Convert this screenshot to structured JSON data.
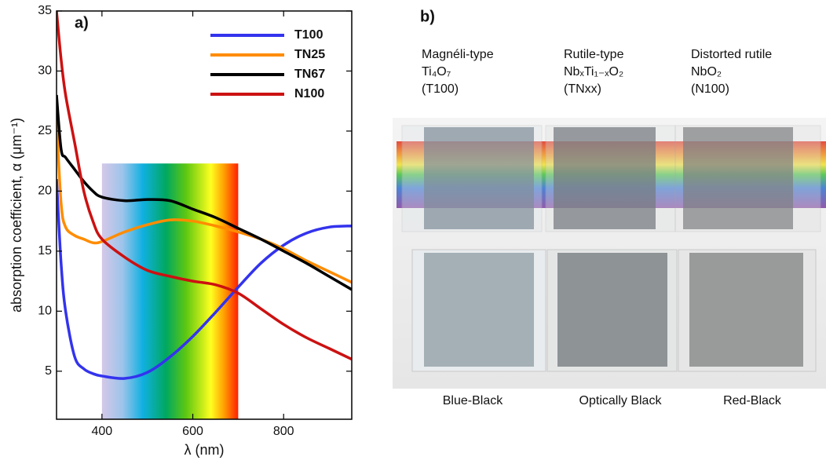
{
  "chart_data": {
    "type": "line",
    "panel_label": "a)",
    "xlabel": "λ (nm)",
    "ylabel": "absorption coefficient, α (μm⁻¹)",
    "xlim": [
      300,
      950
    ],
    "ylim": [
      1,
      35
    ],
    "xticks": [
      400,
      600,
      800
    ],
    "yticks": [
      5,
      10,
      15,
      20,
      25,
      30,
      35
    ],
    "legend": "upper right",
    "visible_band": {
      "x": [
        400,
        700
      ],
      "top": 22.3
    },
    "x": [
      300,
      310,
      320,
      340,
      360,
      380,
      400,
      450,
      500,
      550,
      600,
      650,
      700,
      750,
      800,
      850,
      900,
      950
    ],
    "series": [
      {
        "name": "T100",
        "color": "#3333ee",
        "values": [
          21,
          14,
          10,
          6.2,
          5.2,
          4.8,
          4.6,
          4.4,
          4.9,
          6.2,
          7.9,
          9.9,
          12,
          14,
          15.5,
          16.5,
          17,
          17.1
        ]
      },
      {
        "name": "TN25",
        "color": "#ff8c00",
        "values": [
          26,
          19,
          17,
          16.3,
          16,
          15.7,
          15.8,
          16.6,
          17.2,
          17.6,
          17.5,
          17.1,
          16.6,
          16,
          15.2,
          14.2,
          13.3,
          12.4
        ]
      },
      {
        "name": "TN67",
        "color": "#000000",
        "values": [
          28,
          23.5,
          22.8,
          21.8,
          20.8,
          20,
          19.5,
          19.2,
          19.3,
          19.2,
          18.5,
          17.8,
          16.9,
          16,
          15,
          14,
          12.9,
          11.8
        ]
      },
      {
        "name": "N100",
        "color": "#cc1111",
        "values": [
          35,
          31,
          28,
          24,
          20,
          17.5,
          16,
          14.5,
          13.4,
          12.9,
          12.5,
          12.2,
          11.5,
          10.2,
          8.9,
          7.8,
          6.9,
          6
        ]
      }
    ]
  },
  "photo_panel": {
    "panel_label": "b)",
    "columns": [
      {
        "type": "Magnéli-type",
        "formula": "Ti₄O₇",
        "code": "(T100)",
        "caption": "Blue-Black"
      },
      {
        "type": "Rutile-type",
        "formula": "NbₓTi₁₋ₓO₂",
        "code": "(TNxx)",
        "caption": "Optically Black"
      },
      {
        "type": "Distorted rutile",
        "formula": "NbO₂",
        "code": "(N100)",
        "caption": "Red-Black"
      }
    ]
  }
}
